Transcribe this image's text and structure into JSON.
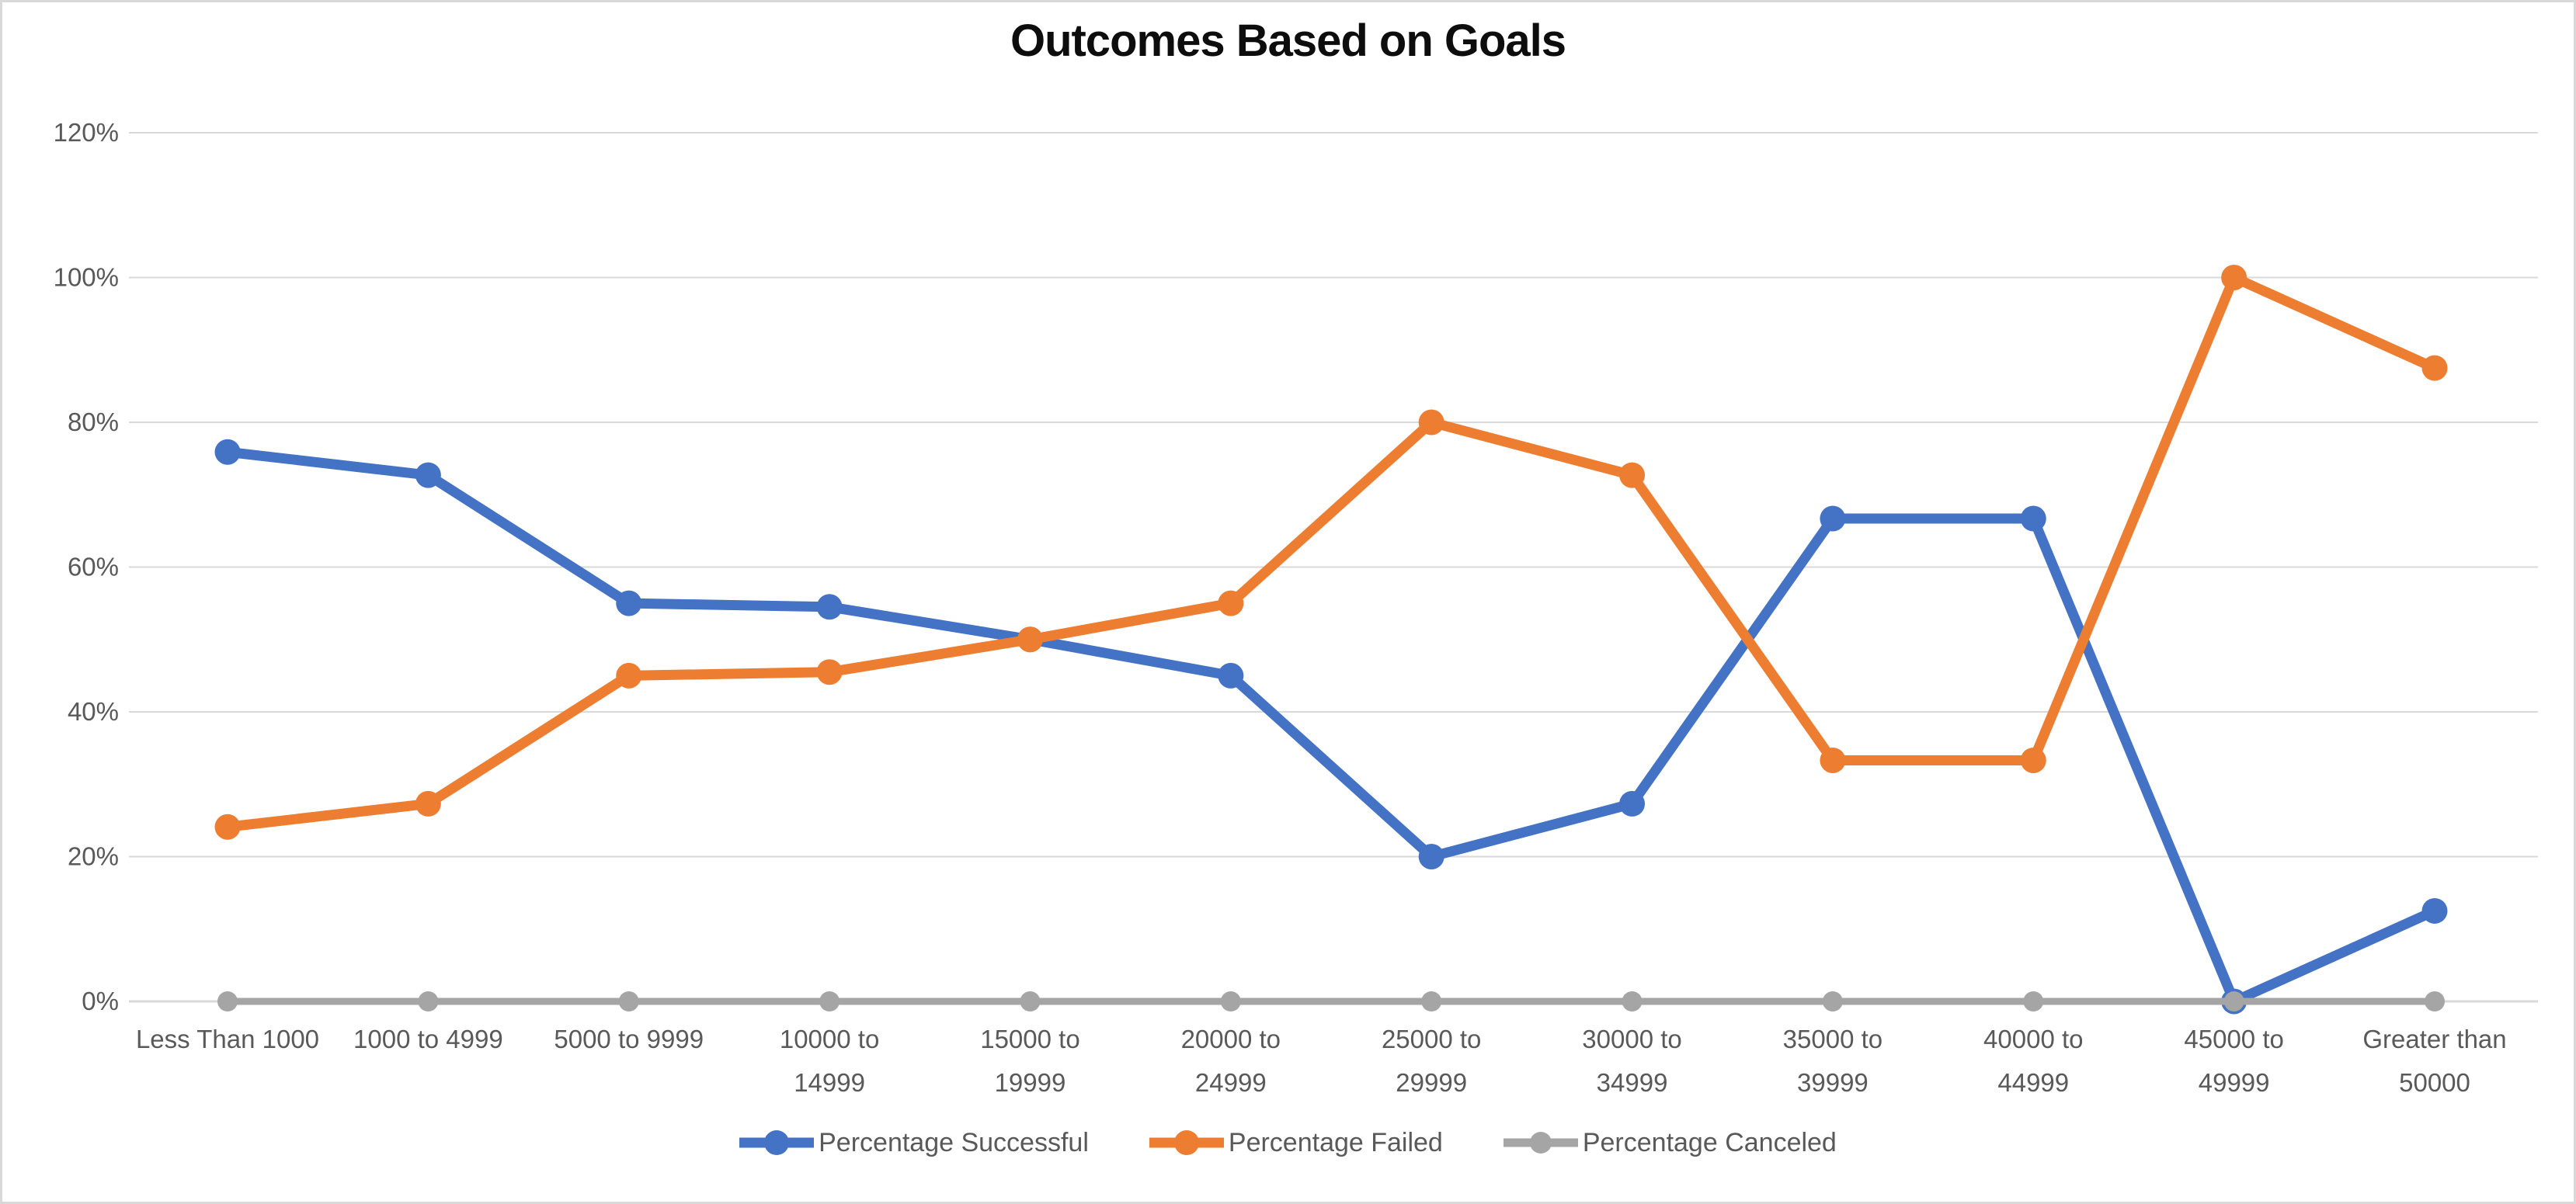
{
  "chart_data": {
    "type": "line",
    "title": "Outcomes Based on Goals",
    "categories": [
      "Less Than 1000",
      "1000 to 4999",
      "5000 to 9999",
      "10000 to 14999",
      "15000 to 19999",
      "20000 to 24999",
      "25000 to 29999",
      "30000 to 34999",
      "35000 to 39999",
      "40000 to 44999",
      "45000 to 49999",
      "Greater than 50000"
    ],
    "series": [
      {
        "name": "Percentage Successful",
        "color": "#4472C4",
        "values": [
          75.9,
          72.7,
          55,
          54.5,
          50,
          45,
          20,
          27.3,
          66.7,
          66.7,
          0,
          12.5
        ]
      },
      {
        "name": "Percentage Failed",
        "color": "#ED7D31",
        "values": [
          24.1,
          27.3,
          45,
          45.5,
          50,
          55,
          80,
          72.7,
          33.3,
          33.3,
          100,
          87.5
        ]
      },
      {
        "name": "Percentage Canceled",
        "color": "#A5A5A5",
        "values": [
          0,
          0,
          0,
          0,
          0,
          0,
          0,
          0,
          0,
          0,
          0,
          0
        ]
      }
    ],
    "y_ticks": [
      "0%",
      "20%",
      "40%",
      "60%",
      "80%",
      "100%",
      "120%"
    ],
    "ylim": [
      0,
      120
    ],
    "grid": true,
    "legend_position": "bottom",
    "x_axis_two_line_from_index": 3
  },
  "colors": {
    "gridline": "#D9D9D9",
    "axis_line": "#D9D9D9",
    "axis_text": "#595959",
    "border": "#D9D9D9",
    "background": "#FFFFFF"
  }
}
